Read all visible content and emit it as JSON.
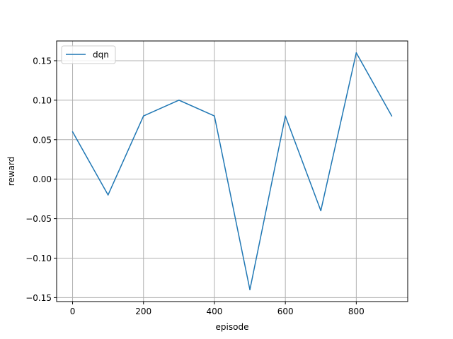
{
  "chart_data": {
    "type": "line",
    "title": "",
    "xlabel": "episode",
    "ylabel": "reward",
    "xlim": [
      -45,
      945
    ],
    "ylim": [
      -0.155,
      0.175
    ],
    "xticks": [
      0,
      200,
      400,
      600,
      800
    ],
    "xtick_labels": [
      "0",
      "200",
      "400",
      "600",
      "800"
    ],
    "yticks": [
      -0.15,
      -0.1,
      -0.05,
      0.0,
      0.05,
      0.1,
      0.15
    ],
    "ytick_labels": [
      "−0.15",
      "−0.10",
      "−0.05",
      "0.00",
      "0.05",
      "0.10",
      "0.15"
    ],
    "grid": true,
    "legend_position": "upper-left",
    "series": [
      {
        "name": "dqn",
        "color": "#1f77b4",
        "x": [
          0,
          100,
          200,
          300,
          400,
          500,
          600,
          700,
          800,
          900
        ],
        "y": [
          0.06,
          -0.02,
          0.08,
          0.1,
          0.08,
          -0.14,
          0.08,
          -0.04,
          0.16,
          0.08
        ]
      }
    ]
  }
}
